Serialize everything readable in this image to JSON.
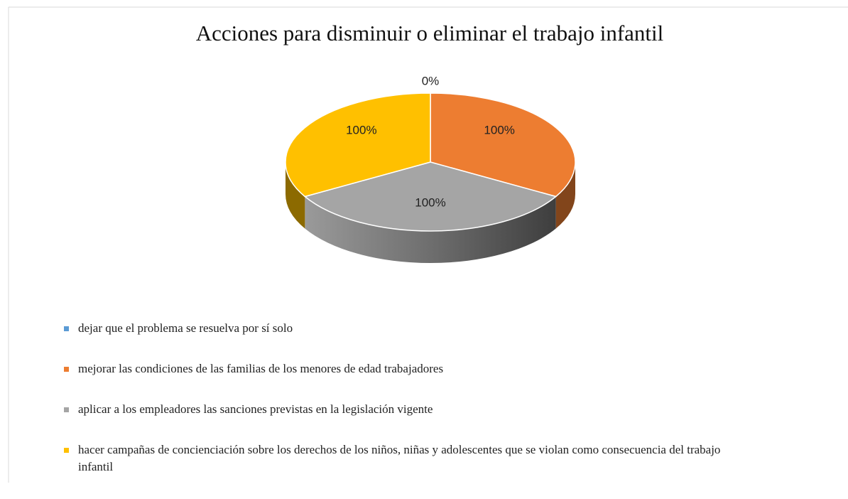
{
  "chart_data": {
    "type": "pie3d",
    "title": "Acciones para disminuir o eliminar el trabajo infantil",
    "categories": [
      "dejar que el problema se resuelva por sí solo",
      "mejorar las condiciones de las familias de los menores de edad trabajadores",
      "aplicar a los empleadores las sanciones previstas en la legislación vigente",
      "hacer campañas de concienciación sobre los derechos de los niños, niñas y adolescentes que se violan como consecuencia del trabajo infantil"
    ],
    "values": [
      0,
      100,
      100,
      100
    ],
    "value_labels": [
      "0%",
      "100%",
      "100%",
      "100%"
    ],
    "colors": [
      "#5b9bd5",
      "#ed7d31",
      "#a5a5a5",
      "#ffc000"
    ],
    "legend": "bottom"
  }
}
